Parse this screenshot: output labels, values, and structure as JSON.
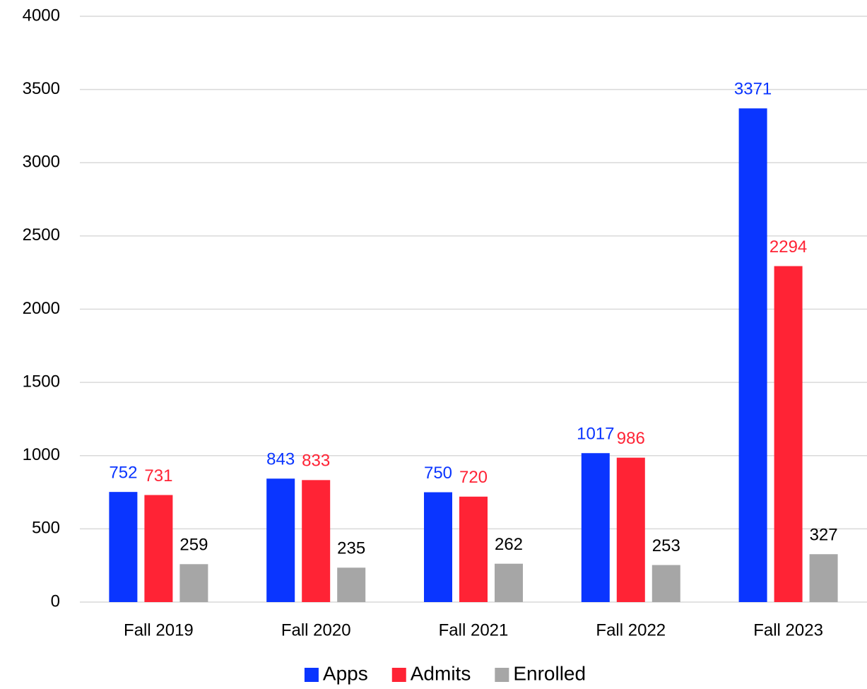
{
  "chart_data": {
    "type": "bar",
    "categories": [
      "Fall 2019",
      "Fall 2020",
      "Fall 2021",
      "Fall 2022",
      "Fall 2023"
    ],
    "series": [
      {
        "name": "Apps",
        "color": "#0a35ff",
        "label_color": "#0a35ff",
        "values": [
          752,
          843,
          750,
          1017,
          3371
        ]
      },
      {
        "name": "Admits",
        "color": "#ff2335",
        "label_color": "#ff2335",
        "values": [
          731,
          833,
          720,
          986,
          2294
        ]
      },
      {
        "name": "Enrolled",
        "color": "#a6a6a6",
        "label_color": "#000000",
        "values": [
          259,
          235,
          262,
          253,
          327
        ]
      }
    ],
    "ylim": [
      0,
      4000
    ],
    "yticks": [
      0,
      500,
      1000,
      1500,
      2000,
      2500,
      3000,
      3500,
      4000
    ],
    "grid": true,
    "legend": "bottom"
  }
}
